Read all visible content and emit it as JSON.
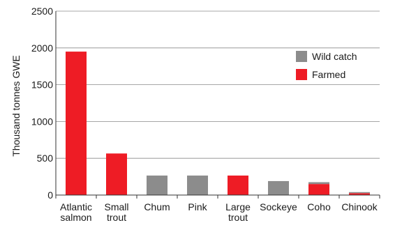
{
  "chart_data": {
    "type": "bar",
    "stacked": true,
    "categories": [
      [
        "Atlantic",
        "salmon"
      ],
      [
        "Small",
        "trout"
      ],
      [
        "Chum"
      ],
      [
        "Pink"
      ],
      [
        "Large",
        "trout"
      ],
      [
        "Sockeye"
      ],
      [
        "Coho"
      ],
      [
        "Chinook"
      ]
    ],
    "series": [
      {
        "name": "Farmed",
        "color": "#ee1c25",
        "values": [
          1950,
          565,
          0,
          0,
          265,
          0,
          150,
          25
        ]
      },
      {
        "name": "Wild catch",
        "color": "#8c8c8c",
        "values": [
          0,
          0,
          265,
          265,
          0,
          190,
          25,
          15
        ]
      }
    ],
    "ylabel": "Thousand tonnes GWE",
    "ylim": [
      0,
      2500
    ],
    "yticks": [
      0,
      500,
      1000,
      1500,
      2000,
      2500
    ],
    "grid": true,
    "legend": {
      "position": "right",
      "entries": [
        {
          "label": "Wild catch",
          "color": "#8c8c8c"
        },
        {
          "label": "Farmed",
          "color": "#ee1c25"
        }
      ]
    }
  }
}
